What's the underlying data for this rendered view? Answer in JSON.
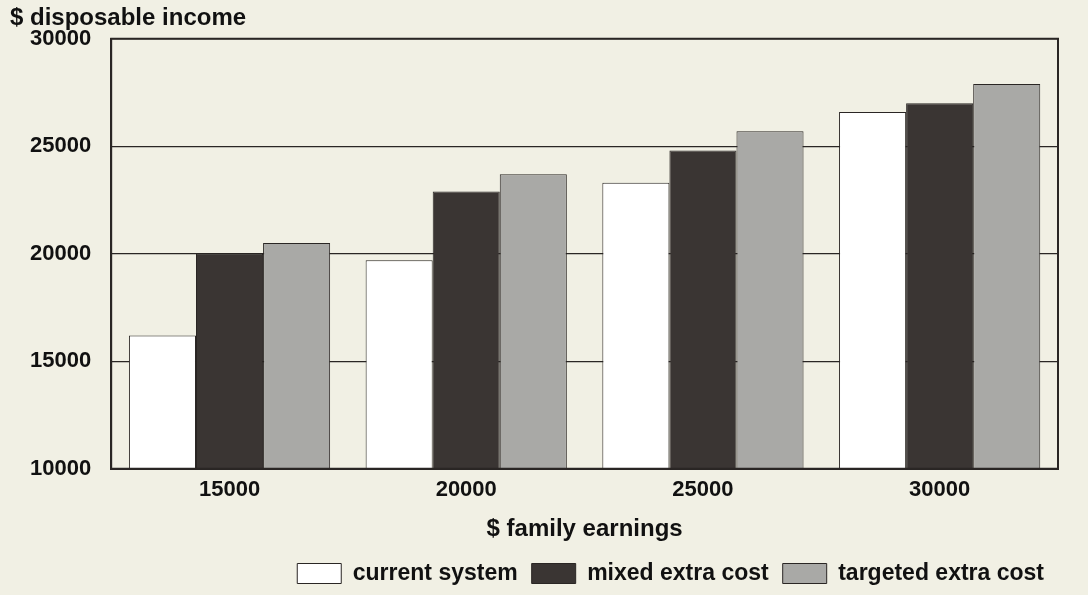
{
  "chart_data": {
    "type": "bar",
    "title": "$ disposable income",
    "xlabel": "$ family earnings",
    "categories": [
      "15000",
      "20000",
      "25000",
      "30000"
    ],
    "series": [
      {
        "name": "current system",
        "color": "#ffffff",
        "values": [
          16200,
          19700,
          23300,
          26600
        ]
      },
      {
        "name": "mixed extra cost",
        "color": "#3a3533",
        "values": [
          20000,
          22900,
          24800,
          27000
        ]
      },
      {
        "name": "targeted extra cost",
        "color": "#a9a9a6",
        "values": [
          20500,
          23700,
          25700,
          27900
        ]
      }
    ],
    "ylim": [
      10000,
      30000
    ],
    "yticks": [
      10000,
      15000,
      20000,
      25000,
      30000
    ],
    "grid": "y",
    "legend": "bottom"
  }
}
